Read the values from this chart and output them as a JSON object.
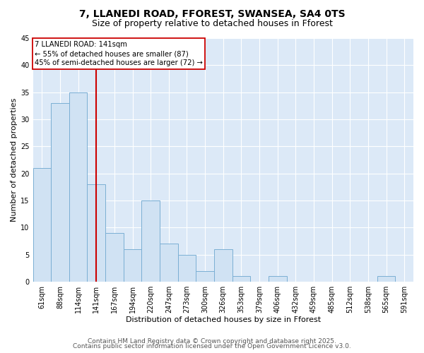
{
  "title_line1": "7, LLANEDI ROAD, FFOREST, SWANSEA, SA4 0TS",
  "title_line2": "Size of property relative to detached houses in Fforest",
  "categories": [
    "61sqm",
    "88sqm",
    "114sqm",
    "141sqm",
    "167sqm",
    "194sqm",
    "220sqm",
    "247sqm",
    "273sqm",
    "300sqm",
    "326sqm",
    "353sqm",
    "379sqm",
    "406sqm",
    "432sqm",
    "459sqm",
    "485sqm",
    "512sqm",
    "538sqm",
    "565sqm",
    "591sqm"
  ],
  "values": [
    21,
    33,
    35,
    18,
    9,
    6,
    15,
    7,
    5,
    2,
    6,
    1,
    0,
    1,
    0,
    0,
    0,
    0,
    0,
    1,
    0
  ],
  "bar_color": "#d0e2f3",
  "bar_edge_color": "#7bafd4",
  "red_line_index": 3,
  "annotation_line1": "7 LLANEDI ROAD: 141sqm",
  "annotation_line2": "← 55% of detached houses are smaller (87)",
  "annotation_line3": "45% of semi-detached houses are larger (72) →",
  "annotation_box_color": "#ffffff",
  "annotation_box_edge": "#cc0000",
  "xlabel": "Distribution of detached houses by size in Fforest",
  "ylabel": "Number of detached properties",
  "ylim": [
    0,
    45
  ],
  "yticks": [
    0,
    5,
    10,
    15,
    20,
    25,
    30,
    35,
    40,
    45
  ],
  "footer_line1": "Contains HM Land Registry data © Crown copyright and database right 2025.",
  "footer_line2": "Contains public sector information licensed under the Open Government Licence v3.0.",
  "fig_bg_color": "#ffffff",
  "plot_bg_color": "#dce9f7",
  "grid_color": "#ffffff",
  "title_fontsize": 10,
  "subtitle_fontsize": 9,
  "footer_fontsize": 6.5,
  "tick_fontsize": 7,
  "axis_label_fontsize": 8
}
